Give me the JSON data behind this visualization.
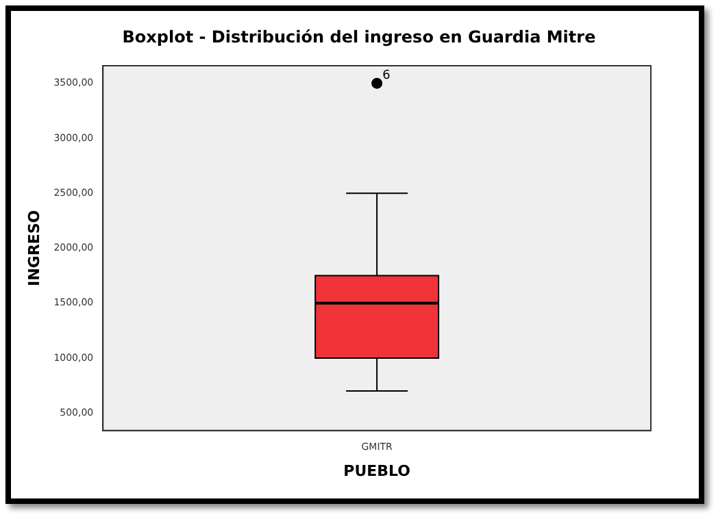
{
  "chart_data": {
    "type": "box",
    "title": "Boxplot  - Distribución del ingreso en Guardia Mitre",
    "xlabel": "PUEBLO",
    "ylabel": "INGRESO",
    "categories": [
      "GMITR"
    ],
    "series": [
      {
        "color": "#ef3339",
        "boxes": [
          {
            "low": 700,
            "q1": 1000,
            "median": 1500,
            "q3": 1750,
            "high": 2500,
            "outliers": [
              3500
            ]
          }
        ]
      }
    ],
    "ylim": [
      340,
      3660
    ],
    "yticks": [
      {
        "value": 500,
        "label": "500,00"
      },
      {
        "value": 1000,
        "label": "1000,00"
      },
      {
        "value": 1500,
        "label": "1500,00"
      },
      {
        "value": 2000,
        "label": "2000,00"
      },
      {
        "value": 2500,
        "label": "2500,00"
      },
      {
        "value": 3000,
        "label": "3000,00"
      },
      {
        "value": 3500,
        "label": "3500,00"
      }
    ],
    "annotations": [
      "6"
    ],
    "grid": false,
    "legend": false
  }
}
